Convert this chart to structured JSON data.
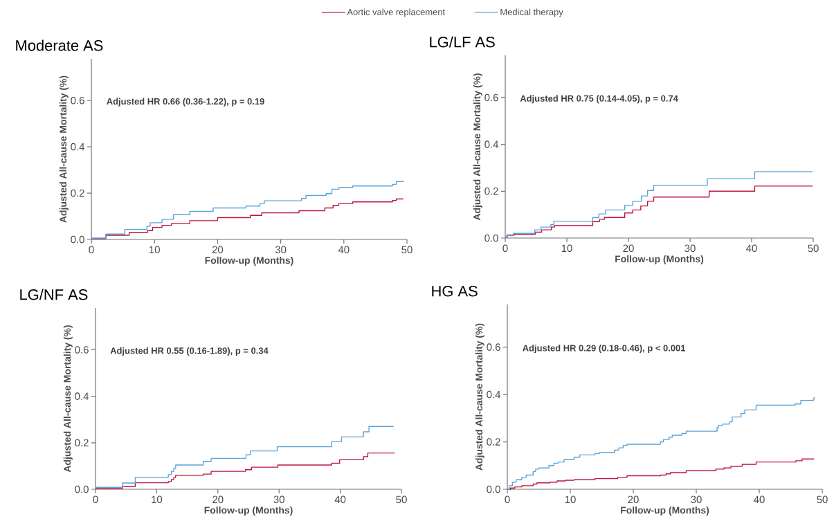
{
  "chart_data": [
    {
      "type": "step",
      "title": "Moderate AS",
      "xlabel": "Follow-up (Months)",
      "ylabel": "Adjusted All-cause Mortality (%)",
      "annotations": [
        "Adjusted HR 0.66 (0.36-1.22), p = 0.19"
      ],
      "xlim": [
        0,
        50
      ],
      "ylim": [
        0,
        0.78
      ],
      "xticks": [
        0,
        10,
        20,
        30,
        40,
        50
      ],
      "yticks": [
        {
          "value": 0,
          "label": "0.0"
        },
        {
          "value": 0.2,
          "label": "0.2"
        },
        {
          "value": 0.4,
          "label": "0.4"
        },
        {
          "value": 0.6,
          "label": "0.6"
        }
      ],
      "legend": "top",
      "grid": false,
      "series": [
        {
          "name": "Aortic valve replacement",
          "color": "#c0143c",
          "x": [
            0,
            2.3,
            6,
            8.9,
            9.7,
            11.2,
            12.7,
            15.6,
            20,
            25.2,
            27,
            32.9,
            37,
            38.3,
            39.2,
            41.4,
            47.7,
            48.3,
            49.4
          ],
          "values": [
            0.003,
            0.018,
            0.03,
            0.038,
            0.052,
            0.061,
            0.069,
            0.081,
            0.094,
            0.104,
            0.115,
            0.124,
            0.136,
            0.147,
            0.155,
            0.162,
            0.168,
            0.175,
            0.176
          ]
        },
        {
          "name": "Medical therapy",
          "color": "#5ba3d9",
          "x": [
            0,
            2.3,
            5.3,
            8.8,
            9.3,
            11.2,
            13,
            15.6,
            19.3,
            24.5,
            26.7,
            27.4,
            33.3,
            34,
            37.2,
            38.1,
            39.2,
            41.4,
            47.7,
            48.3,
            49.4
          ],
          "values": [
            0.006,
            0.023,
            0.043,
            0.057,
            0.072,
            0.087,
            0.107,
            0.121,
            0.136,
            0.144,
            0.155,
            0.167,
            0.177,
            0.19,
            0.198,
            0.217,
            0.224,
            0.231,
            0.238,
            0.25,
            0.255
          ]
        }
      ]
    },
    {
      "type": "step",
      "title": "LG/LF  AS",
      "xlabel": "Follow-up (Months)",
      "ylabel": "Adjusted All-cause Mortality (%)",
      "annotations": [
        "Adjusted HR 0.75 (0.14-4.05), p = 0.74"
      ],
      "xlim": [
        0,
        50
      ],
      "ylim": [
        0,
        0.78
      ],
      "xticks": [
        0,
        10,
        20,
        30,
        40,
        50
      ],
      "yticks": [
        {
          "value": 0,
          "label": "0.0"
        },
        {
          "value": 0.2,
          "label": "0.2"
        },
        {
          "value": 0.4,
          "label": "0.4"
        },
        {
          "value": 0.6,
          "label": "0.6"
        }
      ],
      "grid": false,
      "series": [
        {
          "color": "#c0143c",
          "x": [
            0,
            0.3,
            1.5,
            4.9,
            5.9,
            7.5,
            8,
            14.2,
            15.3,
            16.1,
            19.4,
            20.7,
            22,
            23.1,
            24.1,
            33.1,
            40.5,
            49.9
          ],
          "values": [
            0.002,
            0.013,
            0.016,
            0.025,
            0.035,
            0.047,
            0.053,
            0.07,
            0.08,
            0.088,
            0.107,
            0.12,
            0.137,
            0.157,
            0.175,
            0.2,
            0.222,
            0.222
          ]
        },
        {
          "color": "#5ba3d9",
          "x": [
            0,
            0.2,
            1.3,
            4.8,
            5.8,
            7.4,
            7.9,
            14.2,
            15.2,
            16.3,
            19.4,
            20.7,
            22.1,
            23.1,
            24.1,
            32.8,
            40.5,
            49.9
          ],
          "values": [
            0.002,
            0.01,
            0.02,
            0.035,
            0.047,
            0.057,
            0.072,
            0.087,
            0.103,
            0.12,
            0.14,
            0.157,
            0.18,
            0.203,
            0.225,
            0.253,
            0.283,
            0.283
          ]
        }
      ]
    },
    {
      "type": "step",
      "title": "LG/NF  AS",
      "xlabel": "Follow-up (Months)",
      "ylabel": "Adjusted All-cause Mortality (%)",
      "annotations": [
        "Adjusted HR 0.55 (0.16-1.89), p = 0.34"
      ],
      "xlim": [
        0,
        50
      ],
      "ylim": [
        0,
        0.78
      ],
      "xticks": [
        0,
        10,
        20,
        30,
        40,
        50
      ],
      "yticks": [
        {
          "value": 0,
          "label": "0.0"
        },
        {
          "value": 0.2,
          "label": "0.2"
        },
        {
          "value": 0.4,
          "label": "0.4"
        },
        {
          "value": 0.6,
          "label": "0.6"
        }
      ],
      "grid": false,
      "series": [
        {
          "color": "#c0143c",
          "x": [
            0,
            4.4,
            6.5,
            11.9,
            12.4,
            12.8,
            13.1,
            17.6,
            18.9,
            24.5,
            25.5,
            29.8,
            38.6,
            39.9,
            43.8,
            44.5,
            48.9
          ],
          "values": [
            0.003,
            0.012,
            0.028,
            0.033,
            0.042,
            0.051,
            0.06,
            0.065,
            0.077,
            0.084,
            0.095,
            0.104,
            0.112,
            0.127,
            0.14,
            0.156,
            0.156
          ]
        },
        {
          "color": "#5ba3d9",
          "x": [
            0,
            4.4,
            6.5,
            11.9,
            12.4,
            12.8,
            13.1,
            17.6,
            18.9,
            24.6,
            25.3,
            29.7,
            38.6,
            40.2,
            43.8,
            44.7,
            48.7
          ],
          "values": [
            0.008,
            0.027,
            0.051,
            0.063,
            0.077,
            0.09,
            0.104,
            0.12,
            0.133,
            0.148,
            0.165,
            0.183,
            0.205,
            0.225,
            0.247,
            0.27,
            0.27
          ]
        }
      ]
    },
    {
      "type": "step",
      "title": "HG AS",
      "xlabel": "Follow-up (Months)",
      "ylabel": "Adjusted All-cause Mortality (%)",
      "annotations": [
        "Adjusted HR 0.29 (0.18-0.46), p < 0.001"
      ],
      "xlim": [
        0,
        50
      ],
      "ylim": [
        0,
        0.78
      ],
      "xticks": [
        0,
        10,
        20,
        30,
        40,
        50
      ],
      "yticks": [
        {
          "value": 0,
          "label": "0.0"
        },
        {
          "value": 0.2,
          "label": "0.2"
        },
        {
          "value": 0.4,
          "label": "0.4"
        },
        {
          "value": 0.6,
          "label": "0.6"
        }
      ],
      "grid": false,
      "series": [
        {
          "color": "#c0143c",
          "x": [
            0,
            0.5,
            1.2,
            2.3,
            4.1,
            4.7,
            6.8,
            7.9,
            9.2,
            10.6,
            13.9,
            17.5,
            19,
            24.3,
            25.2,
            25.9,
            28.4,
            33.1,
            34.4,
            35.5,
            37.3,
            39.5,
            45.8,
            46.8,
            48.7
          ],
          "values": [
            0,
            0.005,
            0.01,
            0.015,
            0.022,
            0.027,
            0.03,
            0.035,
            0.038,
            0.04,
            0.045,
            0.05,
            0.057,
            0.06,
            0.065,
            0.07,
            0.078,
            0.085,
            0.09,
            0.097,
            0.105,
            0.115,
            0.12,
            0.128,
            0.128
          ]
        },
        {
          "color": "#5ba3d9",
          "x": [
            0,
            0.3,
            0.8,
            1.4,
            2.3,
            3,
            4.1,
            4.5,
            5,
            6.6,
            7.4,
            8.1,
            9,
            10.6,
            11.5,
            13.9,
            14.6,
            17,
            17.7,
            18.4,
            19,
            24.3,
            24.8,
            25.7,
            26.2,
            27.7,
            28.4,
            33.3,
            33.5,
            34.2,
            35.3,
            35.7,
            37.1,
            37.7,
            39.5,
            45.7,
            46.6,
            48.6,
            48.7
          ],
          "values": [
            0,
            0.015,
            0.03,
            0.04,
            0.05,
            0.06,
            0.075,
            0.085,
            0.09,
            0.1,
            0.11,
            0.115,
            0.125,
            0.135,
            0.145,
            0.15,
            0.155,
            0.165,
            0.175,
            0.185,
            0.19,
            0.2,
            0.21,
            0.22,
            0.228,
            0.235,
            0.245,
            0.26,
            0.27,
            0.275,
            0.285,
            0.305,
            0.32,
            0.335,
            0.355,
            0.36,
            0.375,
            0.38,
            0.39
          ]
        }
      ]
    }
  ]
}
